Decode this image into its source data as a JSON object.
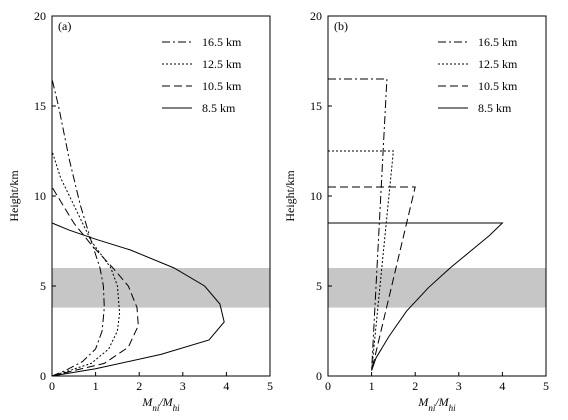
{
  "chart_data": [
    {
      "panel_label": "(a)",
      "type": "line",
      "xlabel_main": "M",
      "xlabel_num_sub": "ni",
      "xlabel_slash": "/",
      "xlabel_den_sub": "hi",
      "ylabel": "Height/km",
      "xlim": [
        0,
        5
      ],
      "ylim": [
        0,
        20
      ],
      "xticks": [
        "0",
        "1",
        "2",
        "3",
        "4",
        "5"
      ],
      "yticks": [
        "0",
        "5",
        "10",
        "15",
        "20"
      ],
      "shaded_band": {
        "y_from": 3.8,
        "y_to": 6.0,
        "color": "#c6c6c6"
      },
      "legend_position": "top-right",
      "series": [
        {
          "name": "16.5 km",
          "style": "dashdot",
          "points": [
            [
              0.0,
              0.0
            ],
            [
              0.3,
              0.3
            ],
            [
              0.7,
              0.8
            ],
            [
              1.0,
              1.5
            ],
            [
              1.15,
              2.5
            ],
            [
              1.2,
              3.8
            ],
            [
              1.18,
              5.0
            ],
            [
              1.1,
              6.0
            ],
            [
              0.9,
              7.5
            ],
            [
              0.65,
              9.5
            ],
            [
              0.4,
              12.0
            ],
            [
              0.15,
              15.0
            ],
            [
              0.0,
              16.5
            ]
          ]
        },
        {
          "name": "12.5 km",
          "style": "dotted",
          "points": [
            [
              0.0,
              0.0
            ],
            [
              0.4,
              0.3
            ],
            [
              0.9,
              0.7
            ],
            [
              1.3,
              1.5
            ],
            [
              1.5,
              2.5
            ],
            [
              1.55,
              3.5
            ],
            [
              1.5,
              5.0
            ],
            [
              1.35,
              6.0
            ],
            [
              0.9,
              7.5
            ],
            [
              0.5,
              9.5
            ],
            [
              0.2,
              11.0
            ],
            [
              0.0,
              12.5
            ]
          ]
        },
        {
          "name": "10.5 km",
          "style": "dashed",
          "points": [
            [
              0.0,
              0.0
            ],
            [
              0.5,
              0.3
            ],
            [
              1.2,
              0.7
            ],
            [
              1.75,
              1.6
            ],
            [
              1.98,
              2.8
            ],
            [
              1.95,
              3.8
            ],
            [
              1.75,
              5.0
            ],
            [
              1.4,
              6.0
            ],
            [
              0.9,
              7.3
            ],
            [
              0.5,
              8.5
            ],
            [
              0.2,
              9.7
            ],
            [
              0.0,
              10.5
            ]
          ]
        },
        {
          "name": "8.5 km",
          "style": "solid",
          "points": [
            [
              0.0,
              0.0
            ],
            [
              1.0,
              0.4
            ],
            [
              2.5,
              1.2
            ],
            [
              3.6,
              2.0
            ],
            [
              3.95,
              3.0
            ],
            [
              3.85,
              4.0
            ],
            [
              3.5,
              5.0
            ],
            [
              2.8,
              6.0
            ],
            [
              1.8,
              7.0
            ],
            [
              1.0,
              7.6
            ],
            [
              0.4,
              8.1
            ],
            [
              0.0,
              8.5
            ]
          ]
        }
      ]
    },
    {
      "panel_label": "(b)",
      "type": "line",
      "xlabel_main": "M",
      "xlabel_num_sub": "ni",
      "xlabel_slash": "/",
      "xlabel_den_sub": "hi",
      "ylabel": "Height/km",
      "xlim": [
        0,
        5
      ],
      "ylim": [
        0,
        20
      ],
      "xticks": [
        "0",
        "1",
        "2",
        "3",
        "4",
        "5"
      ],
      "yticks": [
        "0",
        "5",
        "10",
        "15",
        "20"
      ],
      "shaded_band": {
        "y_from": 3.8,
        "y_to": 6.0,
        "color": "#c6c6c6"
      },
      "legend_position": "top-right",
      "series": [
        {
          "name": "16.5 km",
          "style": "dashdot",
          "points": [
            [
              0.0,
              16.5
            ],
            [
              1.35,
              16.5
            ],
            [
              1.0,
              0.3
            ]
          ]
        },
        {
          "name": "12.5 km",
          "style": "dotted",
          "points": [
            [
              0.0,
              12.5
            ],
            [
              1.5,
              12.5
            ],
            [
              1.0,
              0.3
            ]
          ]
        },
        {
          "name": "10.5 km",
          "style": "dashed",
          "points": [
            [
              0.0,
              10.5
            ],
            [
              2.0,
              10.5
            ],
            [
              1.0,
              0.3
            ]
          ]
        },
        {
          "name": "8.5 km",
          "style": "solid",
          "points": [
            [
              0.0,
              8.5
            ],
            [
              4.0,
              8.5
            ],
            [
              3.7,
              7.8
            ],
            [
              3.3,
              7.0
            ],
            [
              2.8,
              6.0
            ],
            [
              2.3,
              4.9
            ],
            [
              1.8,
              3.6
            ],
            [
              1.4,
              2.2
            ],
            [
              1.1,
              1.0
            ],
            [
              1.0,
              0.3
            ]
          ]
        }
      ]
    }
  ]
}
